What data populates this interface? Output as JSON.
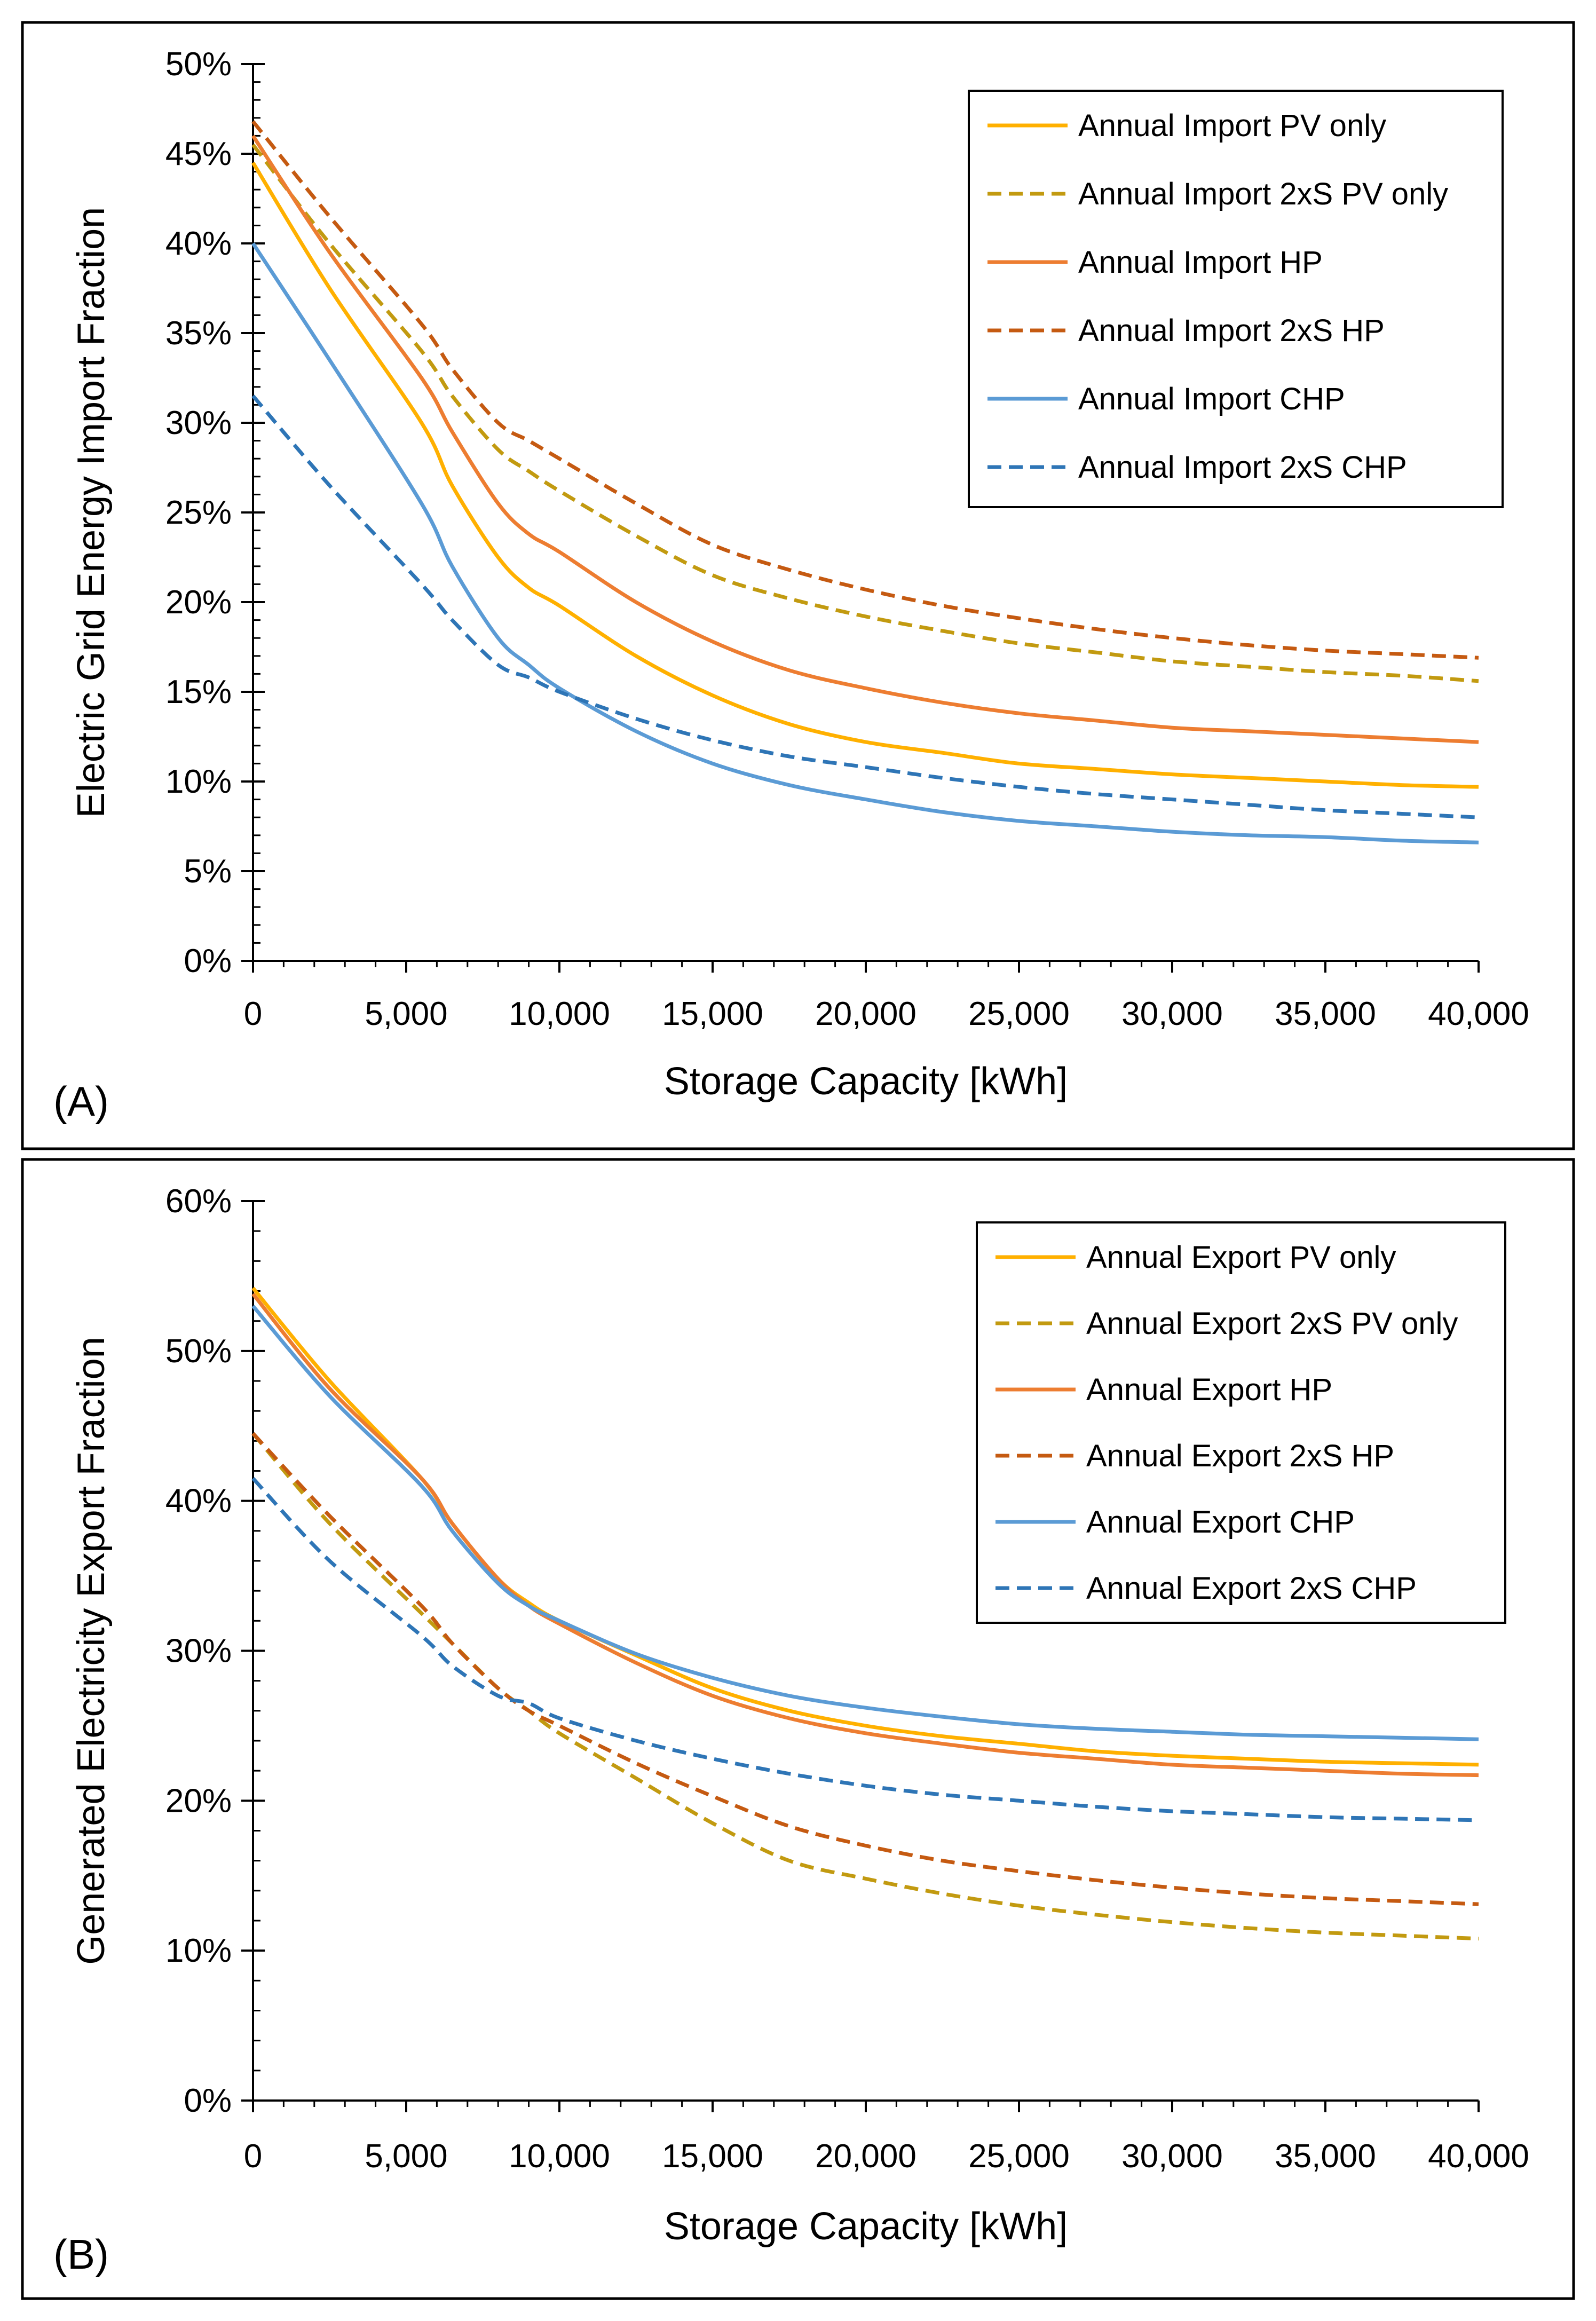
{
  "figure": {
    "panels": [
      "(A)",
      "(B)"
    ]
  },
  "colors": {
    "pv": "#FFB000",
    "pv2x": "#C29A10",
    "hp": "#ED7D31",
    "hp2x": "#C55A11",
    "chp": "#5B9BD5",
    "chp2x": "#2E75B6",
    "highlight_tick": "#FF0000",
    "axis": "#000000"
  },
  "chart_data": [
    {
      "type": "line",
      "panel_label": "(A)",
      "title": "",
      "xlabel": "Storage Capacity [kWh]",
      "ylabel": "Electric Grid Energy Import Fraction",
      "xlim": [
        0,
        40000
      ],
      "ylim": [
        0,
        50
      ],
      "x_ticks": [
        0,
        5000,
        10000,
        15000,
        20000,
        25000,
        30000,
        35000,
        40000
      ],
      "x_tick_labels": [
        "0",
        "5,000",
        "10,000",
        "15,000",
        "20,000",
        "25,000",
        "30,000",
        "35,000",
        "40,000"
      ],
      "highlight_x_tick": "10,000",
      "y_ticks": [
        0,
        5,
        10,
        15,
        20,
        25,
        30,
        35,
        40,
        45,
        50
      ],
      "y_tick_labels": [
        "0%",
        "5%",
        "10%",
        "15%",
        "20%",
        "25%",
        "30%",
        "35%",
        "40%",
        "45%",
        "50%"
      ],
      "legend_position": "top-right",
      "x": [
        0,
        2500,
        5500,
        6500,
        8000,
        9000,
        10000,
        12500,
        15000,
        17500,
        20000,
        22500,
        25000,
        27500,
        30000,
        32500,
        35000,
        37500,
        40000
      ],
      "series": [
        {
          "name": "Annual Import PV only",
          "color_key": "pv",
          "dash": false,
          "values": [
            44.5,
            37.5,
            30.0,
            26.5,
            22.5,
            20.8,
            19.8,
            17.0,
            14.8,
            13.2,
            12.2,
            11.6,
            11.0,
            10.7,
            10.4,
            10.2,
            10.0,
            9.8,
            9.7
          ]
        },
        {
          "name": "Annual Import 2xS PV only",
          "color_key": "pv2x",
          "dash": true,
          "values": [
            45.5,
            40.0,
            34.0,
            31.5,
            28.5,
            27.3,
            26.2,
            23.7,
            21.5,
            20.2,
            19.2,
            18.4,
            17.7,
            17.2,
            16.7,
            16.4,
            16.1,
            15.9,
            15.6
          ]
        },
        {
          "name": "Annual Import HP",
          "color_key": "hp",
          "dash": false,
          "values": [
            46.0,
            39.5,
            32.5,
            29.5,
            25.5,
            23.8,
            22.8,
            20.0,
            17.8,
            16.2,
            15.2,
            14.4,
            13.8,
            13.4,
            13.0,
            12.8,
            12.6,
            12.4,
            12.2
          ]
        },
        {
          "name": "Annual Import 2xS HP",
          "color_key": "hp2x",
          "dash": true,
          "values": [
            46.8,
            41.5,
            35.5,
            33.0,
            30.0,
            29.0,
            28.0,
            25.5,
            23.2,
            21.8,
            20.7,
            19.8,
            19.1,
            18.5,
            18.0,
            17.6,
            17.3,
            17.1,
            16.9
          ]
        },
        {
          "name": "Annual Import CHP",
          "color_key": "chp",
          "dash": false,
          "values": [
            40.0,
            33.5,
            25.5,
            22.0,
            18.0,
            16.5,
            15.2,
            12.8,
            11.0,
            9.8,
            9.0,
            8.3,
            7.8,
            7.5,
            7.2,
            7.0,
            6.9,
            6.7,
            6.6
          ]
        },
        {
          "name": "Annual Import 2xS CHP",
          "color_key": "chp2x",
          "dash": true,
          "values": [
            31.5,
            26.5,
            21.0,
            19.0,
            16.5,
            15.8,
            15.0,
            13.5,
            12.3,
            11.4,
            10.8,
            10.2,
            9.7,
            9.3,
            9.0,
            8.7,
            8.4,
            8.2,
            8.0
          ]
        }
      ]
    },
    {
      "type": "line",
      "panel_label": "(B)",
      "title": "",
      "xlabel": "Storage Capacity [kWh]",
      "ylabel": "Generated Electricity Export Fraction",
      "xlim": [
        0,
        40000
      ],
      "ylim": [
        0,
        60
      ],
      "x_ticks": [
        0,
        5000,
        10000,
        15000,
        20000,
        25000,
        30000,
        35000,
        40000
      ],
      "x_tick_labels": [
        "0",
        "5,000",
        "10,000",
        "15,000",
        "20,000",
        "25,000",
        "30,000",
        "35,000",
        "40,000"
      ],
      "highlight_x_tick": "10,000",
      "y_ticks": [
        0,
        10,
        20,
        30,
        40,
        50,
        60
      ],
      "y_tick_labels": [
        "0%",
        "10%",
        "20%",
        "30%",
        "40%",
        "50%",
        "60%"
      ],
      "legend_position": "top-right",
      "x": [
        0,
        2500,
        5500,
        6500,
        8000,
        9000,
        10000,
        12500,
        15000,
        17500,
        20000,
        22500,
        25000,
        27500,
        30000,
        32500,
        35000,
        37500,
        40000
      ],
      "series": [
        {
          "name": "Annual Export PV only",
          "color_key": "pv",
          "dash": false,
          "values": [
            54.2,
            48.0,
            41.5,
            38.5,
            34.8,
            33.2,
            32.0,
            29.7,
            27.5,
            26.0,
            25.0,
            24.3,
            23.8,
            23.3,
            23.0,
            22.8,
            22.6,
            22.5,
            22.4
          ]
        },
        {
          "name": "Annual Export 2xS PV only",
          "color_key": "pv2x",
          "dash": true,
          "values": [
            44.5,
            38.5,
            32.5,
            30.5,
            27.5,
            26.0,
            24.5,
            21.5,
            18.5,
            16.0,
            14.8,
            13.8,
            13.0,
            12.4,
            11.9,
            11.5,
            11.2,
            11.0,
            10.8
          ]
        },
        {
          "name": "Annual Export HP",
          "color_key": "hp",
          "dash": false,
          "values": [
            53.8,
            47.5,
            41.5,
            38.5,
            34.8,
            33.0,
            31.8,
            29.2,
            27.0,
            25.5,
            24.5,
            23.8,
            23.2,
            22.8,
            22.4,
            22.2,
            22.0,
            21.8,
            21.7
          ]
        },
        {
          "name": "Annual Export 2xS HP",
          "color_key": "hp2x",
          "dash": true,
          "values": [
            44.5,
            39.0,
            33.0,
            30.5,
            27.5,
            26.0,
            25.0,
            22.5,
            20.3,
            18.3,
            17.0,
            16.0,
            15.3,
            14.7,
            14.2,
            13.8,
            13.5,
            13.3,
            13.1
          ]
        },
        {
          "name": "Annual Export CHP",
          "color_key": "chp",
          "dash": false,
          "values": [
            53.0,
            47.0,
            41.0,
            38.0,
            34.5,
            33.0,
            32.0,
            29.8,
            28.2,
            27.0,
            26.2,
            25.6,
            25.1,
            24.8,
            24.6,
            24.4,
            24.3,
            24.2,
            24.1
          ]
        },
        {
          "name": "Annual Export 2xS CHP",
          "color_key": "chp2x",
          "dash": true,
          "values": [
            41.5,
            36.0,
            31.0,
            29.0,
            27.0,
            26.5,
            25.5,
            24.0,
            22.8,
            21.8,
            21.0,
            20.4,
            20.0,
            19.6,
            19.3,
            19.1,
            18.9,
            18.8,
            18.7
          ]
        }
      ]
    }
  ]
}
